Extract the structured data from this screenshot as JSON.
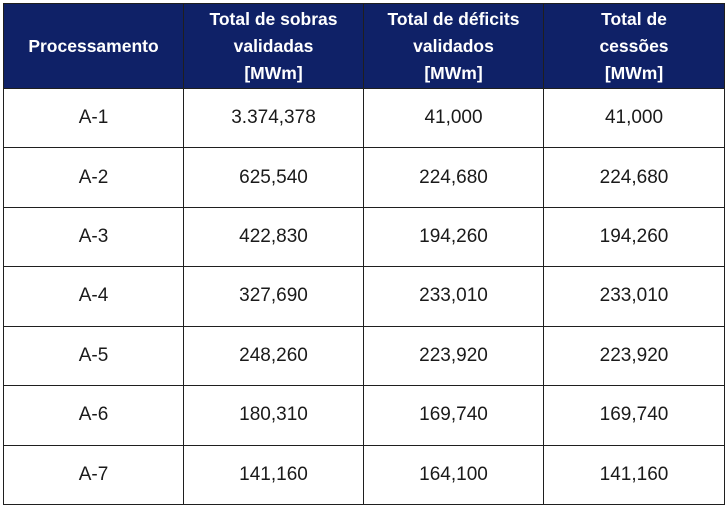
{
  "table": {
    "headers": [
      {
        "lines": [
          "Processamento"
        ]
      },
      {
        "lines": [
          "Total de sobras",
          "validadas",
          "[MWm]"
        ]
      },
      {
        "lines": [
          "Total de déficits",
          "validados",
          "[MWm]"
        ]
      },
      {
        "lines": [
          "Total de",
          "cessões",
          "[MWm]"
        ]
      }
    ],
    "rows": [
      [
        "A-1",
        "3.374,378",
        "41,000",
        "41,000"
      ],
      [
        "A-2",
        "625,540",
        "224,680",
        "224,680"
      ],
      [
        "A-3",
        "422,830",
        "194,260",
        "194,260"
      ],
      [
        "A-4",
        "327,690",
        "233,010",
        "233,010"
      ],
      [
        "A-5",
        "248,260",
        "223,920",
        "223,920"
      ],
      [
        "A-6",
        "180,310",
        "169,740",
        "169,740"
      ],
      [
        "A-7",
        "141,160",
        "164,100",
        "141,160"
      ]
    ]
  },
  "colors": {
    "header_bg": "#0f2167",
    "header_text": "#ffffff",
    "border": "#1f1f1f"
  }
}
